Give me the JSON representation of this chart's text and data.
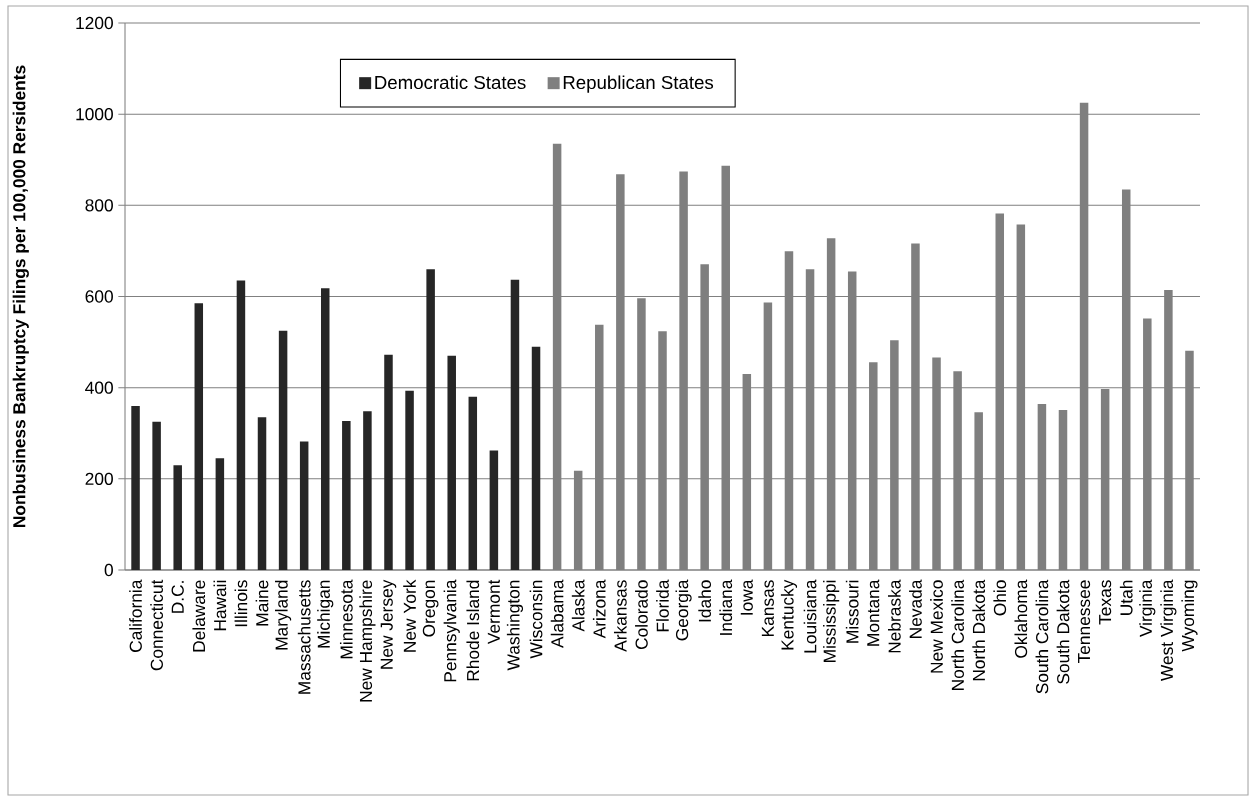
{
  "chart_data": {
    "type": "bar",
    "ylabel": "Nonbusiness Bankruptcy Filings per 100,000 Rersidents",
    "categories": [
      "California",
      "Connecticut",
      "D.C.",
      "Delaware",
      "Hawaii",
      "Illinois",
      "Maine",
      "Maryland",
      "Massachusetts",
      "Michigan",
      "Minnesota",
      "New Hampshire",
      "New Jersey",
      "New York",
      "Oregon",
      "Pennsylvania",
      "Rhode Island",
      "Vermont",
      "Washington",
      "Wisconsin",
      "Alabama",
      "Alaska",
      "Arizona",
      "Arkansas",
      "Colorado",
      "Florida",
      "Georgia",
      "Idaho",
      "Indiana",
      "Iowa",
      "Kansas",
      "Kentucky",
      "Louisiana",
      "Mississippi",
      "Missouri",
      "Montana",
      "Nebraska",
      "Nevada",
      "New Mexico",
      "North Carolina",
      "North Dakota",
      "Ohio",
      "Oklahoma",
      "South Carolina",
      "South Dakota",
      "Tennessee",
      "Texas",
      "Utah",
      "Virginia",
      "West Virginia",
      "Wyoming"
    ],
    "series": [
      {
        "name": "Democratic States",
        "color": "#262626",
        "values": [
          360,
          325,
          230,
          585,
          245,
          635,
          335,
          525,
          282,
          618,
          327,
          348,
          472,
          393,
          660,
          470,
          380,
          262,
          637,
          490,
          null,
          null,
          null,
          null,
          null,
          null,
          null,
          null,
          null,
          null,
          null,
          null,
          null,
          null,
          null,
          null,
          null,
          null,
          null,
          null,
          null,
          null,
          null,
          null,
          null,
          null,
          null,
          null,
          null,
          null,
          null
        ]
      },
      {
        "name": "Republican States",
        "color": "#7f7f7f",
        "values": [
          null,
          null,
          null,
          null,
          null,
          null,
          null,
          null,
          null,
          null,
          null,
          null,
          null,
          null,
          null,
          null,
          null,
          null,
          null,
          null,
          935,
          218,
          538,
          868,
          596,
          524,
          874,
          671,
          887,
          430,
          587,
          699,
          660,
          728,
          655,
          456,
          504,
          716,
          466,
          436,
          346,
          782,
          758,
          364,
          351,
          1025,
          397,
          835,
          552,
          614,
          481
        ]
      }
    ],
    "ylim": [
      0,
      1200
    ],
    "yticks": [
      0,
      200,
      400,
      600,
      800,
      1000,
      1200
    ],
    "grid": "y",
    "legend": "top"
  }
}
